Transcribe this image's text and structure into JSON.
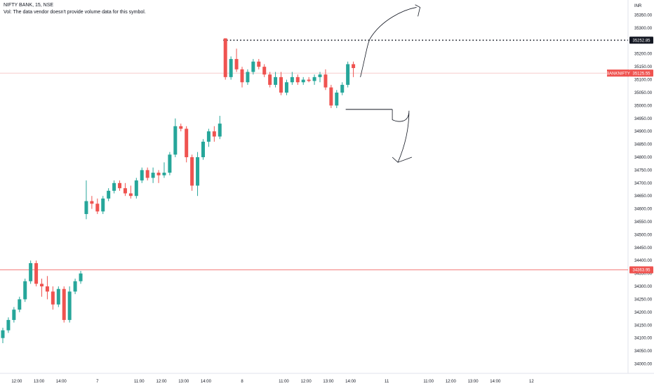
{
  "header": {
    "symbol_line": "NIFTY BANK, 15, NSE",
    "volume_note": "Vol: The data vendor doesn't provide volume data for this symbol."
  },
  "colors": {
    "up": "#26a69a",
    "down": "#ef5350",
    "last_price_line": "#ef9a9a",
    "level_line": "#ef5350",
    "annotation": "#131722"
  },
  "chart_data": {
    "type": "candlestick",
    "currency_label": "INR",
    "y_ticks": [
      35350,
      35300,
      35250,
      35200,
      35150,
      35100,
      35050,
      35000,
      34950,
      34900,
      34850,
      34800,
      34750,
      34700,
      34650,
      34600,
      34550,
      34500,
      34450,
      34400,
      34350,
      34300,
      34250,
      34200,
      34150,
      34100,
      34050,
      34000
    ],
    "y_tick_labels": [
      "35350.00",
      "35300.00",
      "35250.00",
      "35200.00",
      "35150.00",
      "35100.00",
      "35050.00",
      "35000.00",
      "34950.00",
      "34900.00",
      "34850.00",
      "34800.00",
      "34750.00",
      "34700.00",
      "34650.00",
      "34600.00",
      "34550.00",
      "34500.00",
      "34450.00",
      "34400.00",
      "34350.00",
      "34300.00",
      "34250.00",
      "34200.00",
      "34150.00",
      "34100.00",
      "34050.00",
      "34000.00"
    ],
    "x_ticks": [
      {
        "bar": 2.5,
        "label": "12:00"
      },
      {
        "bar": 6.5,
        "label": "13:00"
      },
      {
        "bar": 10.5,
        "label": "14:00"
      },
      {
        "bar": 17,
        "label": "7"
      },
      {
        "bar": 24.5,
        "label": "11:00"
      },
      {
        "bar": 28.5,
        "label": "12:00"
      },
      {
        "bar": 32.5,
        "label": "13:00"
      },
      {
        "bar": 36.5,
        "label": "14:00"
      },
      {
        "bar": 43,
        "label": "8"
      },
      {
        "bar": 50.5,
        "label": "11:00"
      },
      {
        "bar": 54.5,
        "label": "12:00"
      },
      {
        "bar": 58.5,
        "label": "13:00"
      },
      {
        "bar": 62.5,
        "label": "14:00"
      },
      {
        "bar": 69,
        "label": "11"
      },
      {
        "bar": 76.5,
        "label": "11:00"
      },
      {
        "bar": 80.5,
        "label": "12:00"
      },
      {
        "bar": 84.5,
        "label": "13:00"
      },
      {
        "bar": 88.5,
        "label": "14:00"
      },
      {
        "bar": 95,
        "label": "12"
      }
    ],
    "candles": [
      [
        34100,
        34140,
        34080,
        34130
      ],
      [
        34130,
        34180,
        34120,
        34170
      ],
      [
        34170,
        34220,
        34160,
        34210
      ],
      [
        34210,
        34260,
        34200,
        34250
      ],
      [
        34250,
        34330,
        34240,
        34320
      ],
      [
        34320,
        34400,
        34310,
        34390
      ],
      [
        34390,
        34400,
        34300,
        34310
      ],
      [
        34310,
        34330,
        34260,
        34300
      ],
      [
        34300,
        34340,
        34250,
        34280
      ],
      [
        34280,
        34300,
        34210,
        34230
      ],
      [
        34230,
        34300,
        34220,
        34290
      ],
      [
        34290,
        34300,
        34160,
        34170
      ],
      [
        34170,
        34300,
        34160,
        34280
      ],
      [
        34280,
        34330,
        34270,
        34320
      ],
      [
        34320,
        34360,
        34310,
        34350
      ],
      [
        34580,
        34710,
        34560,
        34630
      ],
      [
        34630,
        34650,
        34600,
        34620
      ],
      [
        34620,
        34640,
        34580,
        34590
      ],
      [
        34590,
        34650,
        34580,
        34640
      ],
      [
        34640,
        34680,
        34630,
        34670
      ],
      [
        34670,
        34710,
        34660,
        34700
      ],
      [
        34700,
        34710,
        34670,
        34680
      ],
      [
        34680,
        34700,
        34650,
        34660
      ],
      [
        34660,
        34690,
        34640,
        34650
      ],
      [
        34650,
        34720,
        34640,
        34710
      ],
      [
        34710,
        34760,
        34700,
        34750
      ],
      [
        34750,
        34760,
        34710,
        34720
      ],
      [
        34720,
        34760,
        34700,
        34740
      ],
      [
        34740,
        34750,
        34700,
        34730
      ],
      [
        34730,
        34780,
        34720,
        34740
      ],
      [
        34740,
        34820,
        34730,
        34810
      ],
      [
        34810,
        34950,
        34800,
        34920
      ],
      [
        34920,
        34930,
        34900,
        34910
      ],
      [
        34910,
        34920,
        34780,
        34800
      ],
      [
        34800,
        34810,
        34670,
        34690
      ],
      [
        34690,
        34820,
        34650,
        34800
      ],
      [
        34800,
        34870,
        34790,
        34860
      ],
      [
        34860,
        34910,
        34840,
        34900
      ],
      [
        34900,
        34920,
        34860,
        34880
      ],
      [
        34880,
        34960,
        34870,
        34930
      ],
      [
        35260,
        35260,
        35100,
        35110
      ],
      [
        35110,
        35190,
        35100,
        35180
      ],
      [
        35180,
        35220,
        35130,
        35140
      ],
      [
        35140,
        35150,
        35070,
        35090
      ],
      [
        35090,
        35140,
        35080,
        35130
      ],
      [
        35130,
        35180,
        35120,
        35170
      ],
      [
        35170,
        35180,
        35140,
        35150
      ],
      [
        35150,
        35160,
        35110,
        35120
      ],
      [
        35120,
        35130,
        35070,
        35080
      ],
      [
        35080,
        35130,
        35070,
        35110
      ],
      [
        35110,
        35130,
        35040,
        35050
      ],
      [
        35050,
        35100,
        35040,
        35090
      ],
      [
        35090,
        35130,
        35080,
        35110
      ],
      [
        35110,
        35120,
        35080,
        35090
      ],
      [
        35090,
        35110,
        35080,
        35100
      ],
      [
        35100,
        35110,
        35090,
        35095
      ],
      [
        35095,
        35120,
        35080,
        35110
      ],
      [
        35110,
        35130,
        35090,
        35120
      ],
      [
        35120,
        35140,
        35060,
        35070
      ],
      [
        35070,
        35080,
        34990,
        35000
      ],
      [
        35000,
        35060,
        34990,
        35050
      ],
      [
        35050,
        35090,
        35040,
        35080
      ],
      [
        35080,
        35170,
        35070,
        35160
      ],
      [
        35160,
        35170,
        35110,
        35145
      ]
    ],
    "last_price": {
      "value": 35125.55,
      "label": "35125.55",
      "symbol": "BANKNIFTY"
    },
    "resistance_level": {
      "value": 35252.85,
      "label": "35252.85"
    },
    "support_level": {
      "value": 34363.95,
      "label": "34363.95"
    },
    "grid": false,
    "legend": "none"
  }
}
